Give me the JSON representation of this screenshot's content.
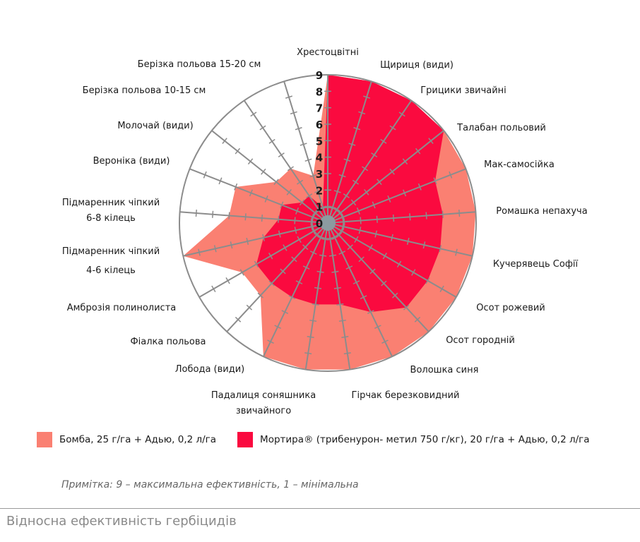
{
  "chart_data": {
    "type": "radar",
    "title": "Відносна ефективність гербіцидів",
    "note": "Примітка: 9 – максимальна ефективність, 1 – мінімальна",
    "rlim": [
      0,
      9
    ],
    "ticks": [
      "0",
      "1",
      "2",
      "3",
      "4",
      "5",
      "6",
      "7",
      "8",
      "9"
    ],
    "categories": [
      "Хрестоцвітні",
      "Щириця (види)",
      "Грицики звичайні",
      "Талабан польовий",
      "Мак-самосійка",
      "Ромашка непахуча",
      "Кучерявець Софії",
      "Осот рожевий",
      "Осот городній",
      "Волошка синя",
      "Гірчак березковидний",
      "Падалиця соняшника звичайного",
      "Лобода (види)",
      "Фіалка польова",
      "Амброзія полинолиста",
      "Підмаренник чіпкий 4-6  кілець",
      "Підмаренник чіпкий 6-8 кілець",
      "Вероніка (види)",
      "Молочай (види)",
      "Берізка польова 10-15 см",
      "Берізка польова 15-20 см"
    ],
    "series": [
      {
        "name": "Бомба, 25 г/га + Адью, 0,2 л/га",
        "color": "#fa8072",
        "values": [
          9,
          9,
          9,
          9,
          9,
          9,
          9,
          9,
          9,
          9,
          9,
          9,
          9,
          6,
          6,
          9,
          6,
          6,
          4,
          4,
          3
        ]
      },
      {
        "name": "Мортира®  (трибенурон- метил 750 г/кг), 20 г/га + Адью, 0,2 л/га",
        "color": "#fa0a3f",
        "values": [
          9,
          9,
          9,
          9,
          7,
          7,
          7,
          7,
          7,
          6,
          5,
          5,
          5,
          5,
          5,
          4,
          3,
          3,
          2,
          2,
          1
        ]
      }
    ],
    "legend": "bottom",
    "grid": true
  },
  "legend": {
    "items": [
      {
        "label": "Бомба, 25 г/га + Адью, 0,2 л/га",
        "color": "#fa8072"
      },
      {
        "label": "Мортира®  (трибенурон- метил 750 г/кг), 20 г/га + Адью, 0,2 л/га",
        "color": "#fa0a3f"
      }
    ]
  },
  "footer": {
    "note": "Примітка: 9 – максимальна ефективність, 1 – мінімальна",
    "title": "Відносна ефективність гербіцидів"
  }
}
